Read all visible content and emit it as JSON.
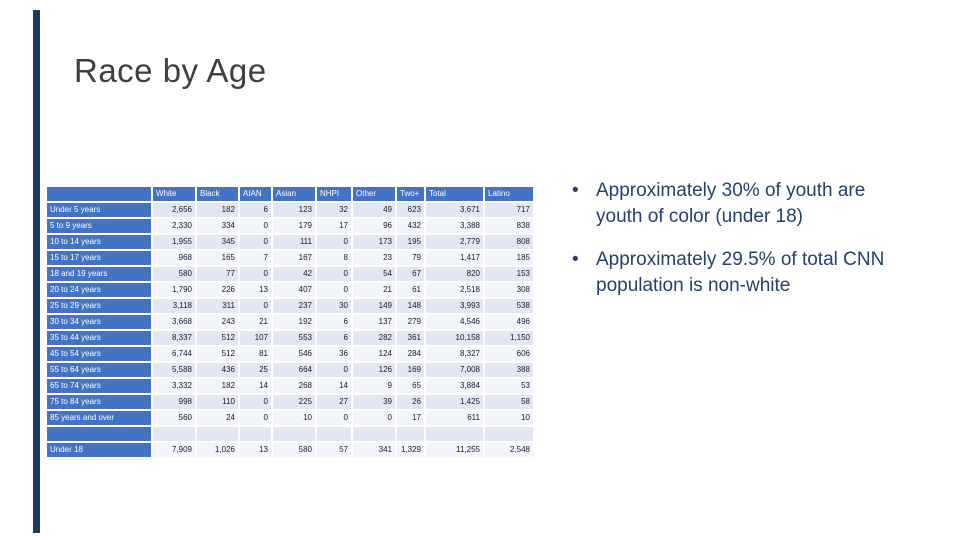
{
  "slide": {
    "title": "Race by Age",
    "accent_bar_color": "#203864",
    "title_color": "#3f3f3f"
  },
  "bullet_glyph": "•",
  "bullet_color": "#26406d",
  "bullets": [
    {
      "text": "Approximately 30% of youth are youth of color (under 18)"
    },
    {
      "text": "Approximately 29.5% of total CNN population is non-white"
    }
  ],
  "table": {
    "header_bg": "#4472c4",
    "band_odd": "#e2e7f3",
    "band_even": "#f3f5fb",
    "columns": [
      "White",
      "Black",
      "AIAN",
      "Asian",
      "NHPI",
      "Other",
      "Two+",
      "Total",
      "Latino"
    ],
    "rows": [
      {
        "label": "Under 5 years",
        "values": [
          "2,656",
          "182",
          "6",
          "123",
          "32",
          "49",
          "623",
          "3,671",
          "717"
        ]
      },
      {
        "label": "5 to 9 years",
        "values": [
          "2,330",
          "334",
          "0",
          "179",
          "17",
          "96",
          "432",
          "3,388",
          "838"
        ]
      },
      {
        "label": "10 to 14 years",
        "values": [
          "1,955",
          "345",
          "0",
          "111",
          "0",
          "173",
          "195",
          "2,779",
          "808"
        ]
      },
      {
        "label": "15 to 17 years",
        "values": [
          "968",
          "165",
          "7",
          "167",
          "8",
          "23",
          "79",
          "1,417",
          "185"
        ]
      },
      {
        "label": "18 and 19 years",
        "values": [
          "580",
          "77",
          "0",
          "42",
          "0",
          "54",
          "67",
          "820",
          "153"
        ]
      },
      {
        "label": "20 to 24 years",
        "values": [
          "1,790",
          "226",
          "13",
          "407",
          "0",
          "21",
          "61",
          "2,518",
          "308"
        ]
      },
      {
        "label": "25 to 29 years",
        "values": [
          "3,118",
          "311",
          "0",
          "237",
          "30",
          "149",
          "148",
          "3,993",
          "538"
        ]
      },
      {
        "label": "30 to 34 years",
        "values": [
          "3,668",
          "243",
          "21",
          "192",
          "6",
          "137",
          "279",
          "4,546",
          "496"
        ]
      },
      {
        "label": "35 to 44 years",
        "values": [
          "8,337",
          "512",
          "107",
          "553",
          "6",
          "282",
          "361",
          "10,158",
          "1,150"
        ]
      },
      {
        "label": "45 to 54 years",
        "values": [
          "6,744",
          "512",
          "81",
          "546",
          "36",
          "124",
          "284",
          "8,327",
          "606"
        ]
      },
      {
        "label": "55 to 64 years",
        "values": [
          "5,588",
          "436",
          "25",
          "664",
          "0",
          "126",
          "169",
          "7,008",
          "388"
        ]
      },
      {
        "label": "65 to 74 years",
        "values": [
          "3,332",
          "182",
          "14",
          "268",
          "14",
          "9",
          "65",
          "3,884",
          "53"
        ]
      },
      {
        "label": "75 to 84 years",
        "values": [
          "998",
          "110",
          "0",
          "225",
          "27",
          "39",
          "26",
          "1,425",
          "58"
        ]
      },
      {
        "label": "85 years and over",
        "values": [
          "560",
          "24",
          "0",
          "10",
          "0",
          "0",
          "17",
          "611",
          "10"
        ]
      },
      {
        "label": "",
        "values": [
          "",
          "",
          "",
          "",
          "",
          "",
          "",
          "",
          ""
        ]
      },
      {
        "label": "Under 18",
        "values": [
          "7,909",
          "1,026",
          "13",
          "580",
          "57",
          "341",
          "1,329",
          "11,255",
          "2,548"
        ]
      }
    ]
  }
}
